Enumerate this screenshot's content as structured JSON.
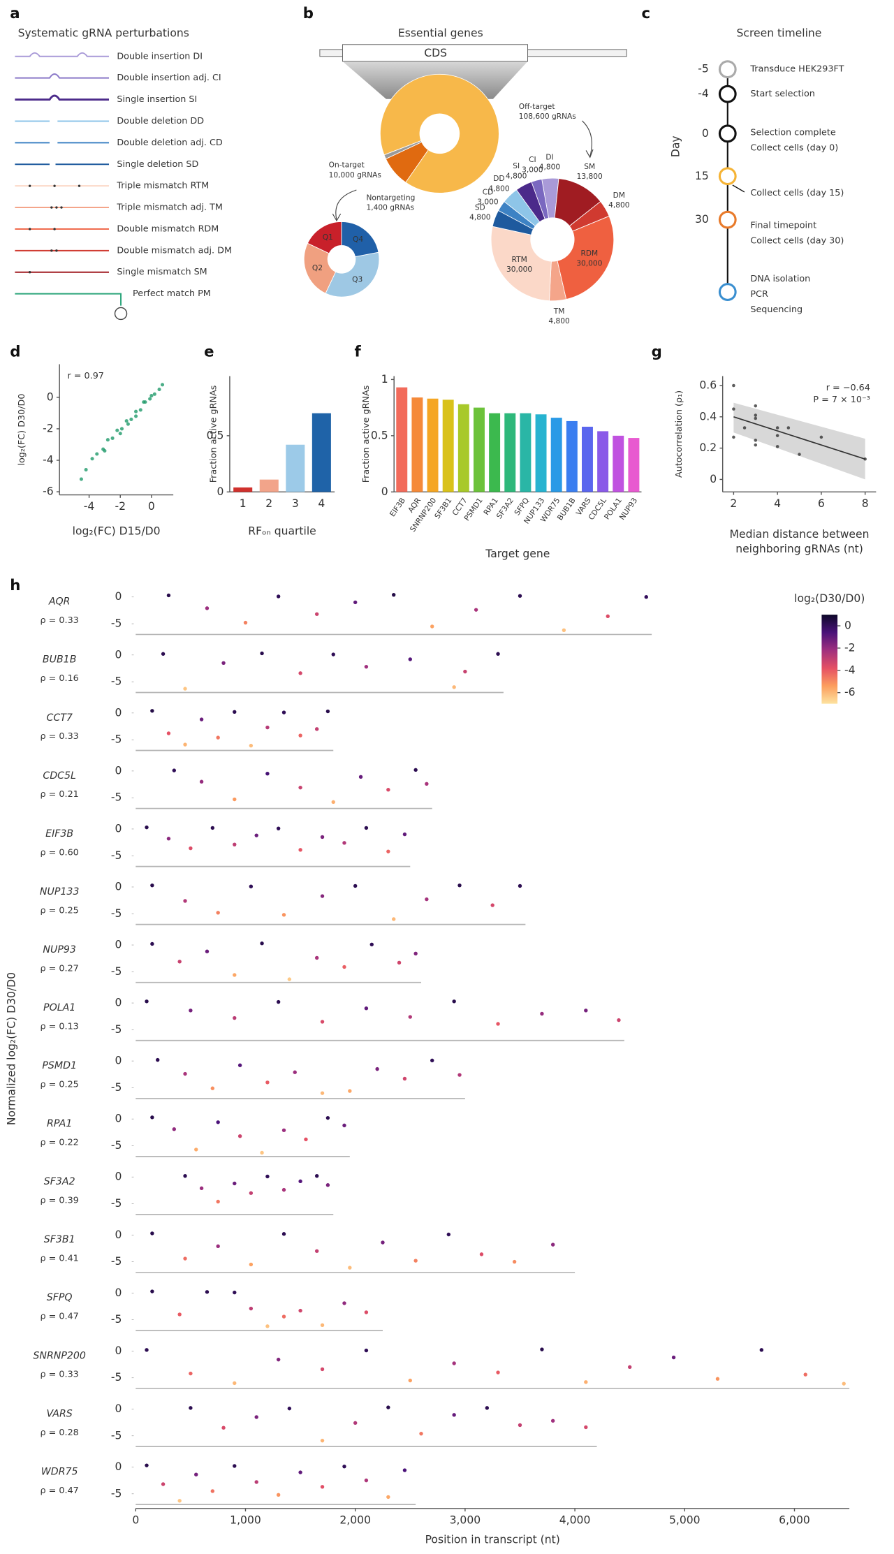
{
  "panel_labels": [
    "a",
    "b",
    "c",
    "d",
    "e",
    "f",
    "g",
    "h"
  ],
  "perturbations": {
    "title": "Systematic gRNA perturbations",
    "items": [
      {
        "label": "Double insertion DI",
        "color": "#a99ad8"
      },
      {
        "label": "Double insertion adj. CI",
        "color": "#8a78c8"
      },
      {
        "label": "Single insertion SI",
        "color": "#4b2a8a"
      },
      {
        "label": "Double deletion DD",
        "color": "#8ec5e8"
      },
      {
        "label": "Double deletion adj. CD",
        "color": "#3d82c4"
      },
      {
        "label": "Single deletion SD",
        "color": "#1e5a9e"
      },
      {
        "label": "Triple mismatch RTM",
        "color": "#fbd8c8"
      },
      {
        "label": "Triple mismatch adj. TM",
        "color": "#f4a58a"
      },
      {
        "label": "Double mismatch RDM",
        "color": "#ef6040"
      },
      {
        "label": "Double mismatch adj. DM",
        "color": "#d03a30"
      },
      {
        "label": "Single mismatch SM",
        "color": "#a01c22"
      },
      {
        "label": "Perfect match PM",
        "color": "#2aa57a"
      }
    ]
  },
  "timeline": {
    "title": "Screen timeline",
    "axis_label": "Day",
    "events": [
      {
        "day": -5,
        "lines": [
          "Transduce HEK293FT"
        ],
        "color": "#aaaaaa"
      },
      {
        "day": -4,
        "lines": [
          "Start selection"
        ],
        "color": "#111111"
      },
      {
        "day": 0,
        "lines": [
          "Selection complete",
          "Collect cells (day 0)"
        ],
        "color": "#111111"
      },
      {
        "day": 15,
        "lines": [
          "Collect cells (day 15)"
        ],
        "color": "#f5b335"
      },
      {
        "day": 30,
        "lines": [
          "Final timepoint",
          "Collect cells (day 30)"
        ],
        "color": "#e87a2a"
      },
      {
        "lines": [
          "DNA isolation",
          "PCR",
          "Sequencing"
        ],
        "color": "#3a8fd0"
      }
    ]
  },
  "chart_data": [
    {
      "type": "donut",
      "title": "Essential genes",
      "gene_label": "CDS",
      "categories": [
        "Off-target",
        "On-target",
        "Nontargeting"
      ],
      "values": [
        108600,
        10000,
        1400
      ],
      "value_labels": [
        "108,600 gRNAs",
        "10,000 gRNAs",
        "1,400 gRNAs"
      ],
      "colors": [
        "#f7b84a",
        "#e06a10",
        "#9a9a9a"
      ]
    },
    {
      "type": "donut",
      "categories": [
        "Q1",
        "Q2",
        "Q3",
        "Q4"
      ],
      "values": [
        18,
        25,
        35,
        22
      ],
      "colors": [
        "#c8202a",
        "#f0a080",
        "#9ec8e4",
        "#2060a8"
      ]
    },
    {
      "type": "donut",
      "categories": [
        "DI",
        "SM",
        "DM",
        "RDM",
        "TM",
        "RTM",
        "SD",
        "CD",
        "DD",
        "SI",
        "CI"
      ],
      "values": [
        4800,
        13800,
        4800,
        30000,
        4800,
        30000,
        4800,
        3000,
        4800,
        4800,
        3000
      ],
      "value_labels": [
        "4,800",
        "13,800",
        "4,800",
        "30,000",
        "4,800",
        "30,000",
        "4,800",
        "3,000",
        "4,800",
        "4,800",
        "3,000"
      ],
      "colors": [
        "#a99ad8",
        "#a01c22",
        "#d03a30",
        "#ef6040",
        "#f4a58a",
        "#fbd8c8",
        "#1e5a9e",
        "#3d82c4",
        "#8ec5e8",
        "#4b2a8a",
        "#7a68c0"
      ]
    },
    {
      "type": "scatter",
      "xlabel": "log₂(FC) D15/D0",
      "ylabel": "log₂(FC) D30/D0",
      "annotations": [
        "r = 0.97"
      ],
      "color": "#1f9a6a",
      "x": [
        -4.2,
        -3.8,
        -3.5,
        -3.1,
        -2.8,
        -2.5,
        -2.2,
        -1.9,
        -1.6,
        -1.3,
        -1.0,
        -0.7,
        -0.4,
        -0.1,
        0.2,
        0.5,
        0.7,
        -3.0,
        -2.0,
        -1.0,
        0.0,
        -4.5,
        -1.5,
        -0.5
      ],
      "y": [
        -4.6,
        -3.9,
        -3.6,
        -3.3,
        -2.7,
        -2.6,
        -2.1,
        -2.0,
        -1.5,
        -1.4,
        -0.9,
        -0.8,
        -0.3,
        -0.1,
        0.2,
        0.5,
        0.8,
        -3.4,
        -2.3,
        -1.2,
        0.1,
        -5.2,
        -1.7,
        -0.3
      ],
      "xlim": [
        -5.9,
        1.4
      ],
      "ylim": [
        -6.2,
        2.1
      ],
      "xticks": [
        -4,
        -2,
        0
      ],
      "yticks": [
        0,
        -2,
        -4,
        -6
      ]
    },
    {
      "type": "bar",
      "ylabel": "Fraction active gRNAs",
      "xlabel": "RFₒₙ quartile",
      "categories": [
        "1",
        "2",
        "3",
        "4"
      ],
      "values": [
        0.04,
        0.11,
        0.42,
        0.7
      ],
      "colors": [
        "#d0312d",
        "#f2a48a",
        "#9ccae8",
        "#1f63a8"
      ],
      "ylim": [
        0,
        1.03
      ],
      "yticks": [
        0,
        0.5
      ]
    },
    {
      "type": "bar",
      "ylabel": "Fraction active gRNAs",
      "xlabel": "Target gene",
      "categories": [
        "EIF3B",
        "AQR",
        "SNRNP200",
        "SF3B1",
        "CCT7",
        "PSMD1",
        "RPA1",
        "SF3A2",
        "SFPQ",
        "NUP133",
        "WDR75",
        "BUB1B",
        "VARS",
        "CDC5L",
        "POLA1",
        "NUP93"
      ],
      "values": [
        0.93,
        0.84,
        0.83,
        0.82,
        0.78,
        0.75,
        0.7,
        0.7,
        0.7,
        0.69,
        0.66,
        0.63,
        0.58,
        0.54,
        0.5,
        0.48
      ],
      "colors": [
        "#f26b5b",
        "#f58a3a",
        "#f5a623",
        "#d9c21a",
        "#a8c92a",
        "#6cc23a",
        "#3cb94e",
        "#2eb87a",
        "#2ab6a6",
        "#27b3d0",
        "#2a9ae6",
        "#3a7ef0",
        "#5a66ee",
        "#8a5ae8",
        "#c052e0",
        "#e85ad0"
      ],
      "ylim": [
        0,
        1.03
      ],
      "yticks": [
        0,
        0.5,
        1
      ]
    },
    {
      "type": "scatter",
      "ylabel": "Autocorrelation (ρ₁)",
      "xlabel": [
        "Median distance between",
        "neighboring gRNAs (nt)"
      ],
      "annotations": [
        "r = −0.64",
        "P = 7 × 10⁻³"
      ],
      "color": "#333333",
      "x": [
        2,
        2,
        2,
        2.5,
        3,
        3,
        3,
        3,
        3,
        4,
        4,
        4,
        4.5,
        5,
        6,
        8
      ],
      "y": [
        0.6,
        0.45,
        0.27,
        0.33,
        0.47,
        0.41,
        0.39,
        0.25,
        0.22,
        0.33,
        0.28,
        0.21,
        0.33,
        0.16,
        0.27,
        0.13
      ],
      "trend_line": {
        "x": [
          2,
          8
        ],
        "y": [
          0.4,
          0.13
        ]
      },
      "band": {
        "x": [
          2,
          8
        ],
        "lower": [
          0.3,
          0.0
        ],
        "upper": [
          0.49,
          0.26
        ]
      },
      "xlim": [
        1.5,
        8.5
      ],
      "ylim": [
        -0.08,
        0.66
      ],
      "xticks": [
        2,
        4,
        6,
        8
      ],
      "yticks": [
        0,
        0.2,
        0.4,
        0.6
      ]
    },
    {
      "type": "strips",
      "xlabel": "Position in transcript (nt)",
      "ylabel": "Normalized log₂(FC) D30/D0",
      "xlim": [
        0,
        6500
      ],
      "xticks": [
        0,
        {
          "value": 1000,
          "label": "1,000"
        },
        {
          "value": 2000,
          "label": "2,000"
        },
        {
          "value": 3000,
          "label": "3,000"
        },
        {
          "value": 4000,
          "label": "4,000"
        },
        {
          "value": 5000,
          "label": "5,000"
        },
        {
          "value": 6000,
          "label": "6,000"
        }
      ],
      "ylim": [
        -7,
        1.5
      ],
      "yticks": [
        0,
        -5
      ],
      "colorbar": {
        "label": "log₂(D30/D0)",
        "lim": [
          -7,
          1
        ],
        "ticks": [
          0,
          -2,
          -4,
          -6
        ],
        "colors": [
          "#0d0829",
          "#4a1279",
          "#a0307e",
          "#e55064",
          "#fc9e5e",
          "#fde3a0"
        ]
      },
      "genes": [
        {
          "name": "AQR",
          "rho_label": "ρ = 0.33",
          "length": 4700,
          "x": [
            300,
            650,
            1000,
            1300,
            1650,
            2000,
            2350,
            2700,
            3100,
            3500,
            3900,
            4300,
            4650
          ],
          "y": [
            0.3,
            -2.1,
            -4.8,
            0.1,
            -3.2,
            -1.0,
            0.4,
            -5.5,
            -2.4,
            0.2,
            -6.2,
            -3.6,
            0.0
          ]
        },
        {
          "name": "BUB1B",
          "rho_label": "ρ = 0.16",
          "length": 3350,
          "x": [
            250,
            450,
            800,
            1150,
            1500,
            1800,
            2100,
            2500,
            2900,
            3000,
            3300
          ],
          "y": [
            0.2,
            -6.3,
            -1.5,
            0.3,
            -3.4,
            0.1,
            -2.2,
            -0.8,
            -6.0,
            -3.1,
            0.2
          ]
        },
        {
          "name": "CCT7",
          "rho_label": "ρ = 0.33",
          "length": 1800,
          "x": [
            150,
            300,
            450,
            600,
            750,
            900,
            1050,
            1200,
            1350,
            1500,
            1650,
            1750
          ],
          "y": [
            0.4,
            -3.8,
            -5.9,
            -1.2,
            -4.6,
            0.2,
            -6.1,
            -2.7,
            0.1,
            -4.2,
            -3.0,
            0.3
          ]
        },
        {
          "name": "CDC5L",
          "rho_label": "ρ = 0.21",
          "length": 2700,
          "x": [
            350,
            600,
            900,
            1200,
            1500,
            1800,
            2050,
            2300,
            2550,
            2650
          ],
          "y": [
            0.1,
            -2.0,
            -5.3,
            -0.5,
            -3.1,
            -5.8,
            -1.1,
            -3.5,
            0.2,
            -2.4
          ]
        },
        {
          "name": "EIF3B",
          "rho_label": "ρ = 0.60",
          "length": 2500,
          "x": [
            100,
            300,
            500,
            700,
            900,
            1100,
            1300,
            1500,
            1700,
            1900,
            2100,
            2300,
            2450
          ],
          "y": [
            0.3,
            -1.8,
            -3.6,
            0.2,
            -2.9,
            -1.2,
            0.1,
            -3.9,
            -1.5,
            -2.6,
            0.2,
            -4.2,
            -1.0
          ]
        },
        {
          "name": "NUP133",
          "rho_label": "ρ = 0.25",
          "length": 3550,
          "x": [
            150,
            450,
            750,
            1050,
            1350,
            1700,
            2000,
            2350,
            2650,
            2950,
            3250,
            3500
          ],
          "y": [
            0.3,
            -2.6,
            -4.8,
            0.1,
            -5.2,
            -1.7,
            0.2,
            -6.0,
            -2.3,
            0.3,
            -3.4,
            0.2
          ]
        },
        {
          "name": "NUP93",
          "rho_label": "ρ = 0.27",
          "length": 2600,
          "x": [
            150,
            400,
            650,
            900,
            1150,
            1400,
            1650,
            1900,
            2150,
            2400,
            2550
          ],
          "y": [
            0.2,
            -3.1,
            -1.2,
            -5.6,
            0.3,
            -6.4,
            -2.4,
            -4.1,
            0.1,
            -3.3,
            -1.6
          ]
        },
        {
          "name": "POLA1",
          "rho_label": "ρ = 0.13",
          "length": 4450,
          "x": [
            100,
            500,
            900,
            1300,
            1700,
            2100,
            2500,
            2900,
            3300,
            3700,
            4100,
            4400
          ],
          "y": [
            0.3,
            -1.4,
            -2.8,
            0.2,
            -3.5,
            -1.0,
            -2.6,
            0.3,
            -3.9,
            -2.0,
            -1.4,
            -3.2
          ]
        },
        {
          "name": "PSMD1",
          "rho_label": "ρ = 0.25",
          "length": 3000,
          "x": [
            200,
            450,
            700,
            950,
            1200,
            1450,
            1700,
            1950,
            2200,
            2450,
            2700,
            2950
          ],
          "y": [
            0.2,
            -2.4,
            -5.1,
            -0.8,
            -4.0,
            -2.1,
            -6.0,
            -5.6,
            -1.5,
            -3.3,
            0.1,
            -2.6
          ]
        },
        {
          "name": "RPA1",
          "rho_label": "ρ = 0.22",
          "length": 1950,
          "x": [
            150,
            350,
            550,
            750,
            950,
            1150,
            1350,
            1550,
            1750,
            1900
          ],
          "y": [
            0.3,
            -1.9,
            -5.7,
            -0.6,
            -3.2,
            -6.3,
            -2.1,
            -3.8,
            0.2,
            -1.2
          ]
        },
        {
          "name": "SF3A2",
          "rho_label": "ρ = 0.39",
          "length": 1800,
          "x": [
            450,
            600,
            750,
            900,
            1050,
            1200,
            1350,
            1500,
            1650,
            1750
          ],
          "y": [
            0.2,
            -2.1,
            -4.6,
            -1.2,
            -3.0,
            0.1,
            -2.4,
            -0.8,
            0.2,
            -1.5
          ]
        },
        {
          "name": "SF3B1",
          "rho_label": "ρ = 0.41",
          "length": 4000,
          "x": [
            150,
            450,
            750,
            1050,
            1350,
            1650,
            1950,
            2250,
            2550,
            2850,
            3150,
            3450,
            3800
          ],
          "y": [
            0.3,
            -4.4,
            -2.1,
            -5.5,
            0.2,
            -3.0,
            -6.1,
            -1.4,
            -4.8,
            0.1,
            -3.6,
            -5.0,
            -1.8
          ]
        },
        {
          "name": "SFPQ",
          "rho_label": "ρ = 0.47",
          "length": 2250,
          "x": [
            150,
            400,
            650,
            900,
            1050,
            1200,
            1350,
            1500,
            1700,
            1900,
            2100
          ],
          "y": [
            0.3,
            -4.0,
            0.2,
            0.1,
            -2.9,
            -6.2,
            -4.4,
            -3.3,
            -6.0,
            -1.9,
            -3.6
          ]
        },
        {
          "name": "SNRNP200",
          "rho_label": "ρ = 0.33",
          "length": 6500,
          "x": [
            100,
            500,
            900,
            1300,
            1700,
            2100,
            2500,
            2900,
            3300,
            3700,
            4100,
            4500,
            4900,
            5300,
            5700,
            6100,
            6450
          ],
          "y": [
            0.2,
            -4.2,
            -6.0,
            -1.6,
            -3.4,
            0.1,
            -5.5,
            -2.3,
            -4.0,
            0.3,
            -5.8,
            -3.0,
            -1.2,
            -5.2,
            0.2,
            -4.4,
            -6.1
          ]
        },
        {
          "name": "VARS",
          "rho_label": "ρ = 0.28",
          "length": 4200,
          "x": [
            500,
            800,
            1100,
            1400,
            1700,
            2000,
            2300,
            2600,
            2900,
            3200,
            3500,
            3800,
            4100
          ],
          "y": [
            0.2,
            -3.5,
            -1.5,
            0.1,
            -5.9,
            -2.6,
            0.3,
            -4.6,
            -1.1,
            0.2,
            -3.0,
            -2.2,
            -3.4
          ]
        },
        {
          "name": "WDR75",
          "rho_label": "ρ = 0.47",
          "length": 2550,
          "x": [
            100,
            250,
            400,
            550,
            700,
            900,
            1100,
            1300,
            1500,
            1700,
            1900,
            2100,
            2300,
            2450
          ],
          "y": [
            0.3,
            -3.2,
            -6.3,
            -1.4,
            -4.5,
            0.2,
            -2.8,
            -5.2,
            -1.0,
            -3.7,
            0.1,
            -2.5,
            -5.6,
            -0.6
          ]
        }
      ]
    }
  ]
}
